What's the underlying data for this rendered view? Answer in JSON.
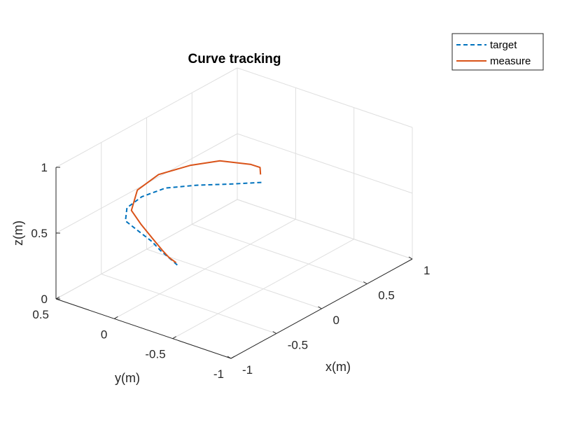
{
  "chart_data": {
    "type": "line",
    "title": "Curve tracking",
    "xlabel": "x(m)",
    "ylabel": "y(m)",
    "zlabel": "z(m)",
    "xlim": [
      -1,
      1
    ],
    "ylim": [
      -1,
      0.5
    ],
    "zlim": [
      0,
      1
    ],
    "x_ticks": [
      "-1",
      "-0.5",
      "0",
      "0.5",
      "1"
    ],
    "y_ticks": [
      "-1",
      "-0.5",
      "0",
      "0.5"
    ],
    "z_ticks": [
      "0",
      "0.5",
      "1"
    ],
    "grid": true,
    "legend_position": "top-right",
    "series": [
      {
        "name": "target",
        "color": "#0072BD",
        "style": "dashed",
        "points": [
          {
            "x": 0.3,
            "y": -0.25,
            "z": 0.62
          },
          {
            "x": 0.12,
            "y": -0.13,
            "z": 0.64
          },
          {
            "x": -0.04,
            "y": 0.04,
            "z": 0.64
          },
          {
            "x": -0.19,
            "y": 0.19,
            "z": 0.63
          },
          {
            "x": -0.35,
            "y": 0.27,
            "z": 0.6
          },
          {
            "x": -0.5,
            "y": 0.28,
            "z": 0.57
          },
          {
            "x": -0.62,
            "y": 0.2,
            "z": 0.54
          },
          {
            "x": -0.65,
            "y": 0.08,
            "z": 0.52
          },
          {
            "x": -0.65,
            "y": -0.05,
            "z": 0.47
          },
          {
            "x": -0.63,
            "y": -0.11,
            "z": 0.41
          },
          {
            "x": -0.6,
            "y": -0.18,
            "z": 0.35
          },
          {
            "x": -0.58,
            "y": -0.22,
            "z": 0.31
          }
        ]
      },
      {
        "name": "measure",
        "color": "#D95319",
        "style": "solid",
        "points": [
          {
            "x": 0.33,
            "y": -0.22,
            "z": 0.66
          },
          {
            "x": 0.35,
            "y": -0.2,
            "z": 0.7
          },
          {
            "x": 0.3,
            "y": -0.16,
            "z": 0.73
          },
          {
            "x": 0.1,
            "y": -0.05,
            "z": 0.8
          },
          {
            "x": -0.1,
            "y": 0.05,
            "z": 0.81
          },
          {
            "x": -0.28,
            "y": 0.18,
            "z": 0.77
          },
          {
            "x": -0.45,
            "y": 0.23,
            "z": 0.7
          },
          {
            "x": -0.58,
            "y": 0.18,
            "z": 0.61
          },
          {
            "x": -0.6,
            "y": 0.08,
            "z": 0.54
          },
          {
            "x": -0.62,
            "y": -0.04,
            "z": 0.47
          },
          {
            "x": -0.6,
            "y": -0.1,
            "z": 0.4
          },
          {
            "x": -0.58,
            "y": -0.14,
            "z": 0.35
          },
          {
            "x": -0.55,
            "y": -0.18,
            "z": 0.31
          }
        ]
      }
    ]
  }
}
